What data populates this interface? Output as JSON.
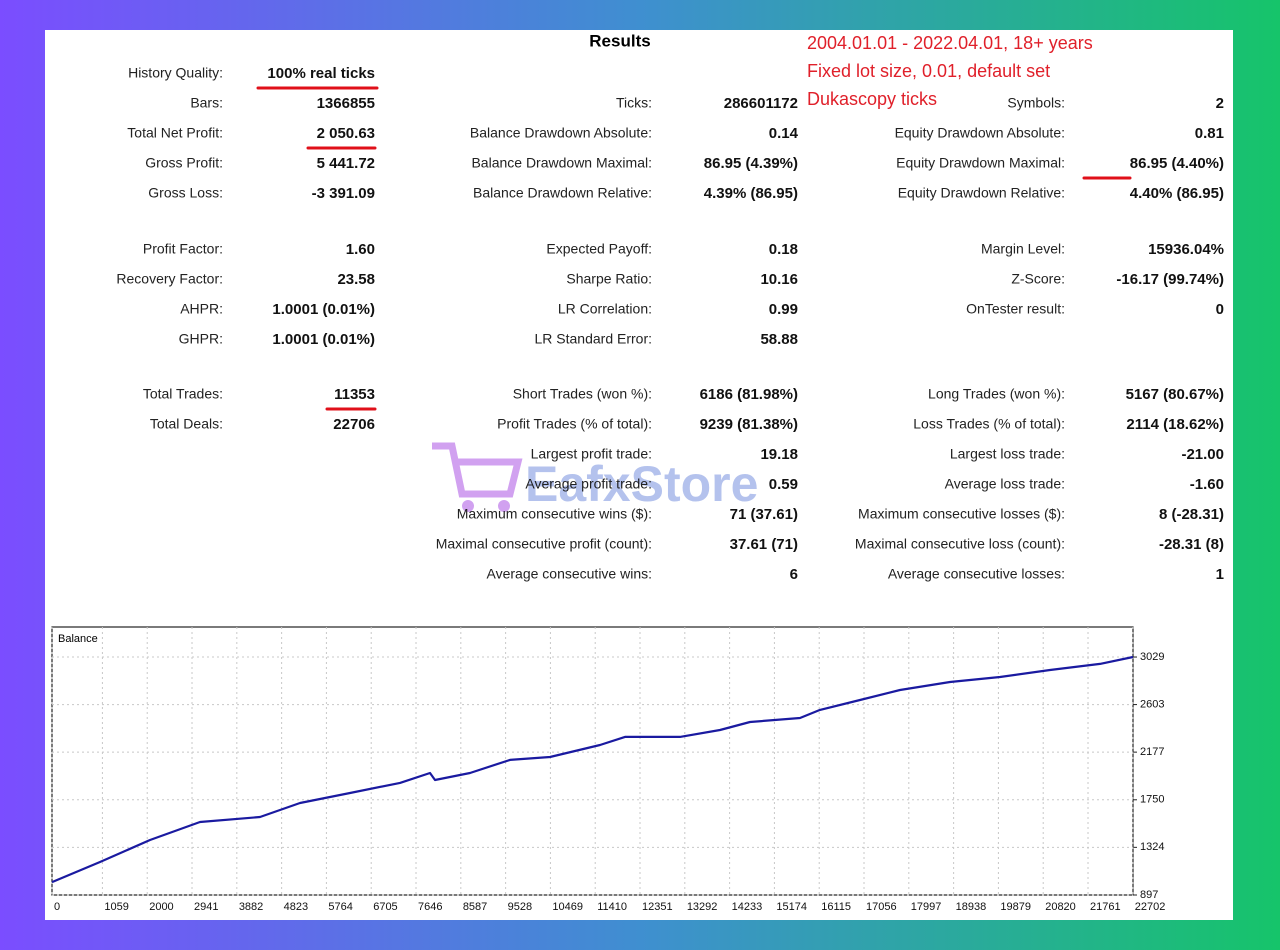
{
  "report": {
    "title": "Results",
    "annotations": [
      "2004.01.01 - 2022.04.01, 18+ years",
      "Fixed lot size, 0.01, default set",
      "Dukascopy ticks"
    ],
    "watermark": "EafxStore",
    "columns": [
      [
        {
          "label": "History Quality:",
          "value": "100% real ticks"
        },
        {
          "label": "Bars:",
          "value": "1366855"
        },
        {
          "label": "Total Net Profit:",
          "value": "2 050.63"
        },
        {
          "label": "Gross Profit:",
          "value": "5 441.72"
        },
        {
          "label": "Gross Loss:",
          "value": "-3 391.09"
        },
        {
          "label": "Profit Factor:",
          "value": "1.60"
        },
        {
          "label": "Recovery Factor:",
          "value": "23.58"
        },
        {
          "label": "AHPR:",
          "value": "1.0001 (0.01%)"
        },
        {
          "label": "GHPR:",
          "value": "1.0001 (0.01%)"
        },
        {
          "label": "Total Trades:",
          "value": "11353"
        },
        {
          "label": "Total Deals:",
          "value": "22706"
        }
      ],
      [
        {
          "label": "Ticks:",
          "value": "286601172"
        },
        {
          "label": "Balance Drawdown Absolute:",
          "value": "0.14"
        },
        {
          "label": "Balance Drawdown Maximal:",
          "value": "86.95 (4.39%)"
        },
        {
          "label": "Balance Drawdown Relative:",
          "value": "4.39% (86.95)"
        },
        {
          "label": "Expected Payoff:",
          "value": "0.18"
        },
        {
          "label": "Sharpe Ratio:",
          "value": "10.16"
        },
        {
          "label": "LR Correlation:",
          "value": "0.99"
        },
        {
          "label": "LR Standard Error:",
          "value": "58.88"
        },
        {
          "label": "Short Trades (won %):",
          "value": "6186 (81.98%)"
        },
        {
          "label": "Profit Trades (% of total):",
          "value": "9239 (81.38%)"
        },
        {
          "label": "Largest profit trade:",
          "value": "19.18"
        },
        {
          "label": "Average profit trade:",
          "value": "0.59"
        },
        {
          "label": "Maximum consecutive wins ($):",
          "value": "71 (37.61)"
        },
        {
          "label": "Maximal consecutive profit (count):",
          "value": "37.61 (71)"
        },
        {
          "label": "Average consecutive wins:",
          "value": "6"
        }
      ],
      [
        {
          "label": "Symbols:",
          "value": "2"
        },
        {
          "label": "Equity Drawdown Absolute:",
          "value": "0.81"
        },
        {
          "label": "Equity Drawdown Maximal:",
          "value": "86.95 (4.40%)"
        },
        {
          "label": "Equity Drawdown Relative:",
          "value": "4.40% (86.95)"
        },
        {
          "label": "Margin Level:",
          "value": "15936.04%"
        },
        {
          "label": "Z-Score:",
          "value": "-16.17 (99.74%)"
        },
        {
          "label": "OnTester result:",
          "value": "0"
        },
        {
          "label": "Long Trades (won %):",
          "value": "5167 (80.67%)"
        },
        {
          "label": "Loss Trades (% of total):",
          "value": "2114 (18.62%)"
        },
        {
          "label": "Largest loss trade:",
          "value": "-21.00"
        },
        {
          "label": "Average loss trade:",
          "value": "-1.60"
        },
        {
          "label": "Maximum consecutive losses ($):",
          "value": "8 (-28.31)"
        },
        {
          "label": "Maximal consecutive loss (count):",
          "value": "-28.31 (8)"
        },
        {
          "label": "Average consecutive losses:",
          "value": "1"
        }
      ]
    ]
  },
  "chart_data": {
    "type": "line",
    "title": "Balance",
    "x": [
      0,
      1008,
      2058,
      3109,
      4369,
      5209,
      6259,
      7310,
      7940,
      8045,
      8780,
      9620,
      10460,
      11510,
      12036,
      13191,
      14031,
      14661,
      15711,
      16131,
      16971,
      17812,
      18862,
      19912,
      20962,
      22013,
      22706
    ],
    "values": [
      1013,
      1193,
      1390,
      1551,
      1596,
      1721,
      1811,
      1901,
      1990,
      1927,
      1990,
      2107,
      2133,
      2241,
      2313,
      2313,
      2375,
      2447,
      2483,
      2555,
      2644,
      2734,
      2805,
      2850,
      2913,
      2967,
      3029
    ],
    "color": "#1a1aa0",
    "xlim": [
      0,
      22706
    ],
    "ylim": [
      897,
      3298
    ],
    "xticks": [
      0,
      1059,
      2000,
      2941,
      3882,
      4823,
      5764,
      6705,
      7646,
      8587,
      9528,
      10469,
      11410,
      12351,
      13292,
      14233,
      15174,
      16115,
      17056,
      17997,
      18938,
      19879,
      20820,
      21761,
      22702
    ],
    "yticks": [
      897,
      1324,
      1750,
      2177,
      2603,
      3029
    ],
    "grid": true
  }
}
